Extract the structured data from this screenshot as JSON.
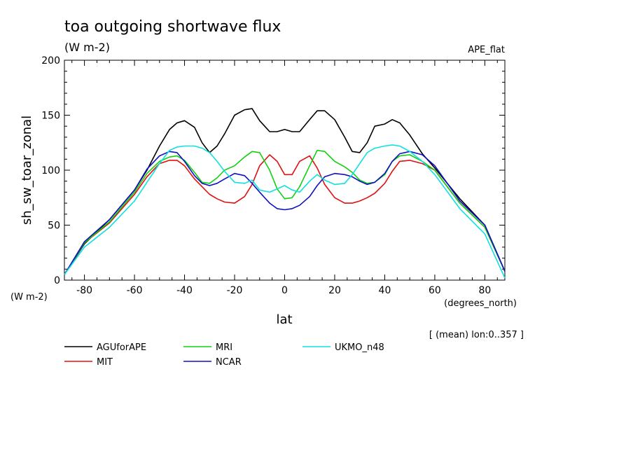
{
  "chart_data": {
    "type": "line",
    "title": "toa outgoing shortwave flux",
    "units": "(W m-2)",
    "experiment": "APE_flat",
    "ylabel": "sh_sw_toar_zonal",
    "ylabel_units": "(W m-2)",
    "xlabel": "lat",
    "xlabel_units": "(degrees_north)",
    "note": "[ (mean) lon:0..357 ]",
    "xlim": [
      -88,
      88
    ],
    "ylim": [
      0,
      200
    ],
    "xticks": [
      -80,
      -60,
      -40,
      -20,
      0,
      20,
      40,
      60,
      80
    ],
    "yticks": [
      0,
      50,
      100,
      150,
      200
    ],
    "grid": false,
    "legend_position": "bottom",
    "series": [
      {
        "name": "AGUforAPE",
        "color": "#000000",
        "x": [
          -88,
          -80,
          -70,
          -60,
          -55,
          -50,
          -46,
          -43,
          -40,
          -36,
          -33,
          -30,
          -27,
          -24,
          -20,
          -16,
          -13,
          -10,
          -6,
          -3,
          0,
          3,
          6,
          10,
          13,
          16,
          20,
          24,
          27,
          30,
          33,
          36,
          40,
          43,
          46,
          50,
          55,
          60,
          70,
          80,
          88
        ],
        "y": [
          5,
          33,
          55,
          82,
          100,
          122,
          137,
          143,
          145,
          139,
          125,
          116,
          122,
          133,
          150,
          155,
          156,
          145,
          135,
          135,
          137,
          135,
          135,
          146,
          154,
          154,
          146,
          130,
          117,
          116,
          125,
          140,
          142,
          146,
          143,
          132,
          115,
          102,
          74,
          50,
          8
        ]
      },
      {
        "name": "MIT",
        "color": "#e01010",
        "x": [
          -88,
          -80,
          -70,
          -60,
          -55,
          -50,
          -46,
          -43,
          -40,
          -36,
          -33,
          -30,
          -27,
          -24,
          -20,
          -16,
          -13,
          -10,
          -6,
          -3,
          0,
          3,
          6,
          10,
          13,
          16,
          20,
          24,
          27,
          30,
          33,
          36,
          40,
          43,
          46,
          50,
          55,
          60,
          70,
          80,
          88
        ],
        "y": [
          5,
          34,
          52,
          78,
          94,
          106,
          109,
          109,
          104,
          92,
          85,
          78,
          74,
          71,
          70,
          76,
          87,
          104,
          114,
          108,
          96,
          96,
          108,
          113,
          102,
          87,
          75,
          70,
          70,
          72,
          75,
          79,
          88,
          99,
          108,
          109,
          106,
          100,
          70,
          48,
          8
        ]
      },
      {
        "name": "MRI",
        "color": "#10d010",
        "x": [
          -88,
          -80,
          -70,
          -60,
          -55,
          -50,
          -46,
          -43,
          -40,
          -36,
          -33,
          -30,
          -27,
          -24,
          -20,
          -16,
          -13,
          -10,
          -6,
          -3,
          0,
          3,
          6,
          10,
          13,
          16,
          20,
          24,
          27,
          30,
          33,
          36,
          40,
          43,
          46,
          50,
          55,
          60,
          70,
          80,
          88
        ],
        "y": [
          5,
          34,
          53,
          80,
          97,
          108,
          112,
          113,
          109,
          98,
          89,
          88,
          93,
          100,
          104,
          112,
          117,
          116,
          100,
          83,
          74,
          75,
          85,
          104,
          118,
          117,
          108,
          103,
          98,
          91,
          88,
          89,
          96,
          108,
          113,
          114,
          108,
          100,
          70,
          48,
          8
        ]
      },
      {
        "name": "NCAR",
        "color": "#1010c0",
        "x": [
          -88,
          -80,
          -70,
          -60,
          -55,
          -50,
          -46,
          -43,
          -40,
          -36,
          -33,
          -30,
          -27,
          -24,
          -20,
          -16,
          -13,
          -10,
          -6,
          -3,
          0,
          3,
          6,
          10,
          13,
          16,
          20,
          24,
          27,
          30,
          33,
          36,
          40,
          43,
          46,
          50,
          55,
          60,
          70,
          80,
          88
        ],
        "y": [
          5,
          35,
          55,
          82,
          101,
          113,
          117,
          116,
          108,
          95,
          88,
          86,
          88,
          92,
          97,
          95,
          88,
          80,
          70,
          65,
          64,
          65,
          68,
          76,
          86,
          94,
          97,
          96,
          94,
          90,
          87,
          89,
          97,
          108,
          115,
          117,
          114,
          104,
          72,
          50,
          8
        ]
      },
      {
        "name": "UKMO_n48",
        "color": "#10e0e0",
        "x": [
          -88,
          -80,
          -70,
          -60,
          -55,
          -50,
          -46,
          -43,
          -40,
          -36,
          -33,
          -30,
          -27,
          -24,
          -20,
          -16,
          -13,
          -10,
          -6,
          -3,
          0,
          3,
          6,
          10,
          13,
          16,
          20,
          24,
          27,
          30,
          33,
          36,
          40,
          43,
          46,
          50,
          55,
          60,
          70,
          80,
          88
        ],
        "y": [
          5,
          30,
          48,
          72,
          89,
          106,
          118,
          121,
          122,
          122,
          120,
          116,
          108,
          99,
          89,
          88,
          91,
          82,
          80,
          83,
          86,
          82,
          80,
          90,
          96,
          91,
          87,
          88,
          96,
          106,
          116,
          120,
          122,
          123,
          122,
          117,
          108,
          96,
          65,
          42,
          2
        ]
      }
    ]
  }
}
